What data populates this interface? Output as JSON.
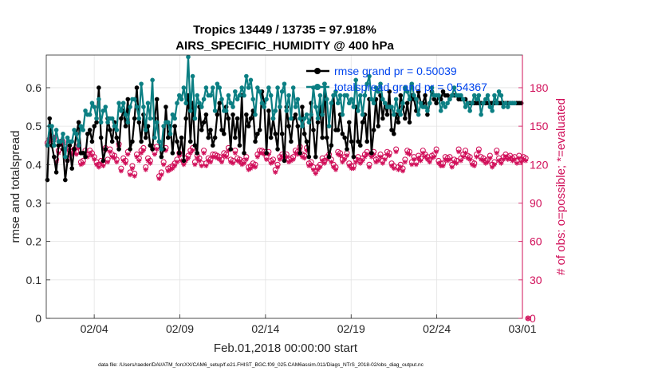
{
  "chart_data": {
    "type": "line",
    "title": "Tropics 13449 / 13735 = 97.918%",
    "subtitle": "AIRS_SPECIFIC_HUMIDITY @ 400 hPa",
    "xlabel": "Feb.01,2018 00:00:00 start",
    "ylabel_left": "rmse and totalspread",
    "ylabel_right": "# of obs: o=possible; *=evaluated",
    "x_ticks": [
      "02/04",
      "02/09",
      "02/14",
      "02/19",
      "02/24",
      "03/01"
    ],
    "x_tick_days": [
      3,
      8,
      13,
      18,
      23,
      28
    ],
    "xlim_days": [
      0.2,
      28.0
    ],
    "y_ticks_left": [
      "0",
      "0.1",
      "0.2",
      "0.3",
      "0.4",
      "0.5",
      "0.6"
    ],
    "ylim_left": [
      0,
      0.685
    ],
    "y_ticks_right": [
      "0",
      "30",
      "60",
      "90",
      "120",
      "150",
      "180"
    ],
    "ylim_right": [
      0,
      205.5
    ],
    "grid": true,
    "legend_position": "top-right",
    "series": [
      {
        "name": "rmse",
        "legend": "rmse grand pr = 0.50039",
        "color": "#000000",
        "axis": "left",
        "values": [
          0.36,
          0.52,
          0.45,
          0.42,
          0.38,
          0.45,
          0.46,
          0.44,
          0.36,
          0.41,
          0.45,
          0.39,
          0.44,
          0.48,
          0.51,
          0.43,
          0.43,
          0.42,
          0.48,
          0.49,
          0.46,
          0.5,
          0.51,
          0.6,
          0.47,
          0.41,
          0.44,
          0.52,
          0.49,
          0.46,
          0.51,
          0.47,
          0.44,
          0.52,
          0.54,
          0.5,
          0.57,
          0.44,
          0.46,
          0.52,
          0.6,
          0.51,
          0.46,
          0.53,
          0.47,
          0.5,
          0.45,
          0.44,
          0.52,
          0.57,
          0.46,
          0.42,
          0.44,
          0.55,
          0.47,
          0.5,
          0.43,
          0.5,
          0.46,
          0.43,
          0.47,
          0.41,
          0.52,
          0.58,
          0.46,
          0.56,
          0.45,
          0.43,
          0.55,
          0.49,
          0.51,
          0.53,
          0.47,
          0.49,
          0.45,
          0.47,
          0.53,
          0.56,
          0.49,
          0.48,
          0.55,
          0.52,
          0.44,
          0.53,
          0.47,
          0.52,
          0.45,
          0.58,
          0.43,
          0.53,
          0.5,
          0.52,
          0.54,
          0.46,
          0.48,
          0.49,
          0.59,
          0.56,
          0.43,
          0.54,
          0.47,
          0.52,
          0.48,
          0.44,
          0.55,
          0.48,
          0.41,
          0.55,
          0.5,
          0.46,
          0.52,
          0.53,
          0.5,
          0.43,
          0.55,
          0.48,
          0.46,
          0.42,
          0.56,
          0.49,
          0.42,
          0.51,
          0.55,
          0.47,
          0.61,
          0.47,
          0.42,
          0.45,
          0.58,
          0.49,
          0.49,
          0.53,
          0.48,
          0.47,
          0.44,
          0.51,
          0.46,
          0.42,
          0.55,
          0.46,
          0.45,
          0.51,
          0.53,
          0.46,
          0.57,
          0.43,
          0.49,
          0.57,
          0.5,
          0.58,
          0.52,
          0.56,
          0.53,
          0.59,
          0.49,
          0.48,
          0.53,
          0.51,
          0.58,
          0.55,
          0.52,
          0.56,
          0.51,
          0.58,
          0.57,
          0.54,
          0.59,
          0.56,
          0.56,
          0.58,
          0.53,
          0.56,
          0.59,
          0.57,
          0.56,
          0.58,
          0.57,
          0.59,
          0.58,
          0.58,
          0.57,
          0.58,
          0.58,
          0.58,
          0.57,
          0.57,
          0.57,
          0.57,
          0.56,
          0.56,
          0.56,
          0.56,
          0.56,
          0.56,
          0.56,
          0.56,
          0.56,
          0.56,
          0.56,
          0.56,
          0.56,
          0.56,
          0.56,
          0.56,
          0.56,
          0.56,
          0.56,
          0.56,
          0.56,
          0.56,
          0.56,
          0.56,
          0.56
        ]
      },
      {
        "name": "totalspread",
        "legend": "totalspread grand pr = 0.54367",
        "color": "#0b7f83",
        "axis": "left",
        "values": [
          0.45,
          0.5,
          0.5,
          0.45,
          0.49,
          0.46,
          0.46,
          0.48,
          0.42,
          0.47,
          0.46,
          0.46,
          0.49,
          0.48,
          0.45,
          0.5,
          0.49,
          0.54,
          0.53,
          0.53,
          0.56,
          0.55,
          0.52,
          0.57,
          0.51,
          0.54,
          0.55,
          0.51,
          0.52,
          0.52,
          0.5,
          0.49,
          0.56,
          0.54,
          0.56,
          0.53,
          0.51,
          0.55,
          0.57,
          0.57,
          0.55,
          0.52,
          0.61,
          0.55,
          0.49,
          0.56,
          0.52,
          0.62,
          0.47,
          0.51,
          0.46,
          0.44,
          0.5,
          0.51,
          0.51,
          0.48,
          0.53,
          0.52,
          0.56,
          0.58,
          0.57,
          0.6,
          0.56,
          0.68,
          0.54,
          0.63,
          0.52,
          0.58,
          0.56,
          0.55,
          0.57,
          0.6,
          0.58,
          0.58,
          0.6,
          0.54,
          0.61,
          0.6,
          0.57,
          0.54,
          0.54,
          0.58,
          0.56,
          0.55,
          0.59,
          0.57,
          0.58,
          0.6,
          0.58,
          0.63,
          0.6,
          0.62,
          0.57,
          0.53,
          0.6,
          0.59,
          0.56,
          0.55,
          0.57,
          0.6,
          0.58,
          0.52,
          0.54,
          0.6,
          0.55,
          0.59,
          0.61,
          0.54,
          0.58,
          0.52,
          0.6,
          0.55,
          0.57,
          0.52,
          0.5,
          0.52,
          0.53,
          0.51,
          0.53,
          0.6,
          0.55,
          0.52,
          0.58,
          0.53,
          0.61,
          0.57,
          0.5,
          0.56,
          0.58,
          0.59,
          0.56,
          0.58,
          0.53,
          0.58,
          0.58,
          0.56,
          0.57,
          0.55,
          0.62,
          0.54,
          0.58,
          0.53,
          0.58,
          0.61,
          0.63,
          0.57,
          0.56,
          0.6,
          0.59,
          0.61,
          0.57,
          0.56,
          0.55,
          0.55,
          0.55,
          0.53,
          0.57,
          0.54,
          0.53,
          0.56,
          0.6,
          0.59,
          0.57,
          0.61,
          0.58,
          0.57,
          0.53,
          0.56,
          0.55,
          0.55,
          0.54,
          0.56,
          0.6,
          0.58,
          0.58,
          0.58,
          0.54,
          0.56,
          0.55,
          0.56,
          0.57,
          0.58,
          0.6,
          0.58,
          0.58,
          0.58,
          0.57,
          0.55,
          0.56,
          0.54,
          0.56,
          0.58,
          0.57,
          0.58,
          0.53,
          0.56,
          0.57,
          0.58,
          0.55,
          0.54,
          0.58,
          0.56,
          0.59,
          0.58,
          0.55,
          0.56,
          0.55,
          0.56,
          0.56,
          0.56
        ]
      },
      {
        "name": "obs_possible",
        "legend": "o=possible",
        "color": "#d1105a",
        "axis": "right",
        "values": [
          137,
          140,
          142,
          141,
          124,
          131,
          138,
          138,
          134,
          125,
          131,
          130,
          132,
          130,
          135,
          122,
          123,
          131,
          128,
          131,
          129,
          126,
          122,
          120,
          123,
          121,
          133,
          124,
          132,
          128,
          127,
          124,
          136,
          117,
          125,
          123,
          130,
          114,
          119,
          113,
          128,
          125,
          131,
          133,
          118,
          125,
          123,
          134,
          130,
          134,
          111,
          114,
          122,
          133,
          117,
          118,
          119,
          121,
          124,
          129,
          125,
          122,
          125,
          127,
          131,
          133,
          122,
          127,
          125,
          121,
          131,
          121,
          125,
          124,
          128,
          128,
          127,
          126,
          124,
          129,
          128,
          133,
          124,
          123,
          131,
          125,
          124,
          122,
          123,
          126,
          118,
          119,
          121,
          120,
          128,
          131,
          131,
          130,
          126,
          130,
          123,
          124,
          116,
          120,
          126,
          128,
          127,
          128,
          124,
          125,
          126,
          131,
          130,
          134,
          128,
          127,
          133,
          121,
          122,
          118,
          115,
          118,
          120,
          125,
          123,
          126,
          128,
          124,
          120,
          118,
          130,
          129,
          124,
          126,
          129,
          121,
          119,
          119,
          124,
          126,
          123,
          125,
          128,
          130,
          120,
          128,
          130,
          124,
          125,
          128,
          123,
          126,
          130,
          129,
          121,
          119,
          132,
          118,
          120,
          117,
          124,
          131,
          130,
          122,
          126,
          122,
          127,
          125,
          131,
          128,
          126,
          124,
          127,
          128,
          132,
          123,
          121,
          121,
          126,
          125,
          126,
          120,
          124,
          123,
          132,
          125,
          128,
          131,
          127,
          126,
          122,
          121,
          128,
          132,
          126,
          125,
          123,
          124,
          127,
          120,
          122,
          131,
          125,
          123,
          126,
          128,
          126,
          127,
          125,
          126,
          123,
          127,
          124,
          126,
          125,
          0
        ]
      },
      {
        "name": "obs_evaluated",
        "legend": "*=evaluated",
        "color": "#d1105a",
        "axis": "right",
        "values": [
          135,
          138,
          140,
          139,
          122,
          129,
          136,
          136,
          132,
          123,
          129,
          128,
          130,
          128,
          133,
          120,
          121,
          129,
          126,
          129,
          127,
          124,
          120,
          118,
          121,
          119,
          131,
          122,
          130,
          126,
          125,
          122,
          134,
          115,
          123,
          121,
          128,
          112,
          117,
          111,
          126,
          123,
          129,
          131,
          116,
          123,
          121,
          132,
          128,
          132,
          109,
          112,
          120,
          131,
          115,
          116,
          117,
          119,
          122,
          127,
          123,
          120,
          123,
          125,
          129,
          131,
          120,
          125,
          123,
          119,
          129,
          119,
          123,
          122,
          126,
          126,
          125,
          124,
          122,
          127,
          126,
          131,
          122,
          121,
          129,
          123,
          122,
          120,
          121,
          124,
          116,
          117,
          119,
          118,
          126,
          129,
          129,
          128,
          124,
          128,
          121,
          122,
          114,
          118,
          124,
          126,
          125,
          126,
          122,
          123,
          124,
          129,
          128,
          132,
          126,
          125,
          131,
          119,
          120,
          116,
          113,
          116,
          118,
          123,
          121,
          124,
          126,
          122,
          118,
          116,
          128,
          127,
          122,
          124,
          127,
          119,
          117,
          117,
          122,
          124,
          121,
          123,
          126,
          128,
          118,
          126,
          128,
          122,
          123,
          126,
          121,
          124,
          128,
          127,
          119,
          117,
          130,
          116,
          118,
          115,
          122,
          129,
          128,
          120,
          124,
          120,
          125,
          123,
          129,
          126,
          124,
          122,
          125,
          126,
          130,
          121,
          119,
          119,
          124,
          123,
          124,
          118,
          122,
          121,
          130,
          123,
          126,
          129,
          125,
          124,
          120,
          119,
          126,
          130,
          124,
          123,
          121,
          122,
          125,
          118,
          120,
          129,
          123,
          121,
          124,
          126,
          124,
          125,
          123,
          124,
          121,
          125,
          122,
          124,
          123,
          0
        ]
      }
    ]
  },
  "footnote": "data file: /Users/raeder/DAI/ATM_forcXX/CAM6_setup/f.e21.FHIST_BGC.f09_025.CAM6assim.011/Diags_NTrS_2018-02/obs_diag_output.nc"
}
